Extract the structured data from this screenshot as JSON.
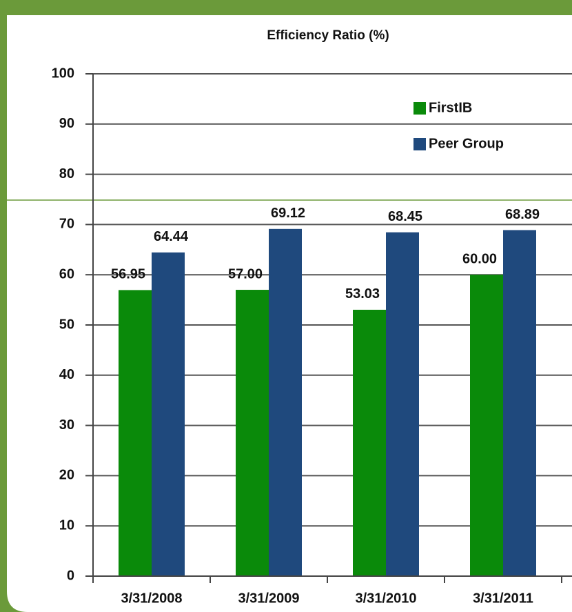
{
  "chart_data": {
    "type": "bar",
    "title": "Efficiency Ratio (%)",
    "categories": [
      "3/31/2008",
      "3/31/2009",
      "3/31/2010",
      "3/31/2011"
    ],
    "series": [
      {
        "name": "FirstIB",
        "color": "#0a8a0a",
        "values": [
          56.95,
          57,
          53.03,
          60
        ],
        "value_labels": [
          "56.95",
          "57.00",
          "53.03",
          "60.00"
        ]
      },
      {
        "name": "Peer Group",
        "color": "#1f497d",
        "values": [
          64.44,
          69.12,
          68.45,
          68.89
        ],
        "value_labels": [
          "64.44",
          "69.12",
          "68.45",
          "68.89"
        ]
      }
    ],
    "ylim": [
      0,
      100
    ],
    "yticks": [
      0,
      10,
      20,
      30,
      40,
      50,
      60,
      70,
      80,
      90,
      100
    ],
    "grid": true,
    "legend": "upper right"
  }
}
